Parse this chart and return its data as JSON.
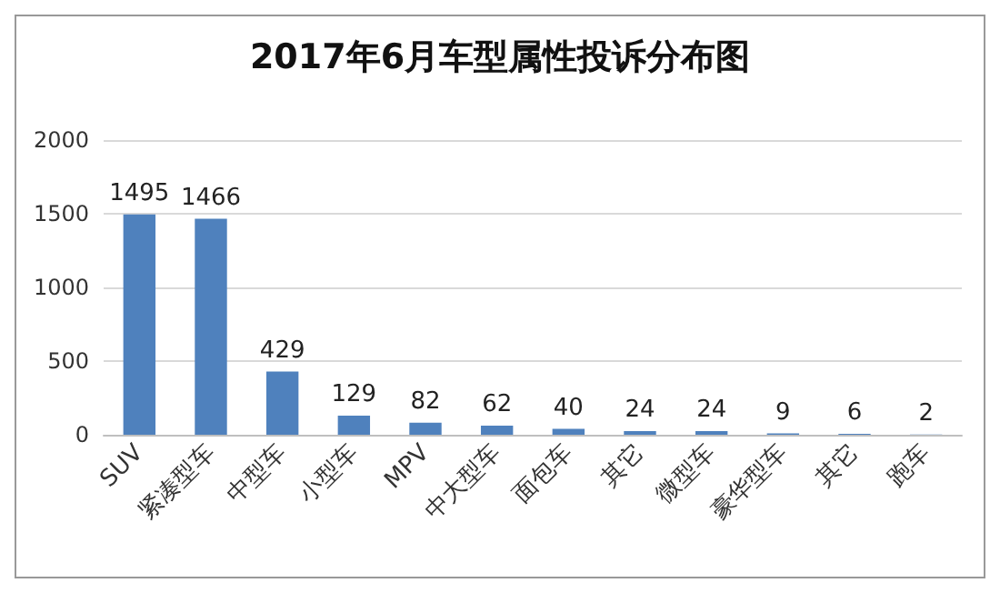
{
  "chart_data": {
    "type": "bar",
    "title": "2017年6月车型属性投诉分布图",
    "categories": [
      "SUV",
      "紧凑型车",
      "中型车",
      "小型车",
      "MPV",
      "中大型车",
      "面包车",
      "其它",
      "微型车",
      "豪华型车",
      "其它",
      "跑车"
    ],
    "values": [
      1495,
      1466,
      429,
      129,
      82,
      62,
      40,
      24,
      24,
      9,
      6,
      2
    ],
    "color": "#4f81bd",
    "ylim": [
      0,
      2000
    ],
    "yticks": [
      0,
      500,
      1000,
      1500,
      2000
    ],
    "grid": "y",
    "data_labels": true
  }
}
